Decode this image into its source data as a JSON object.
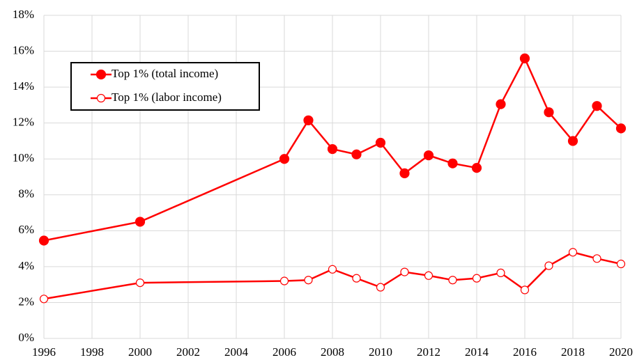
{
  "chart_data": {
    "type": "line",
    "x": [
      1996,
      2000,
      2006,
      2007,
      2008,
      2009,
      2010,
      2011,
      2012,
      2013,
      2014,
      2015,
      2016,
      2017,
      2018,
      2019,
      2020
    ],
    "series": [
      {
        "name": "Top 1% (total income)",
        "color": "#ff0000",
        "marker": "filled",
        "values": [
          5.45,
          6.5,
          10.0,
          12.15,
          10.55,
          10.25,
          10.9,
          9.2,
          10.2,
          9.75,
          9.5,
          13.05,
          15.6,
          12.6,
          11.0,
          12.95,
          11.7
        ]
      },
      {
        "name": "Top 1% (labor income)",
        "color": "#ff0000",
        "marker": "hollow",
        "values": [
          2.2,
          3.1,
          3.2,
          3.25,
          3.85,
          3.35,
          2.85,
          3.7,
          3.5,
          3.25,
          3.35,
          3.65,
          2.7,
          4.05,
          4.8,
          4.45,
          4.15
        ]
      }
    ],
    "xlim": [
      1996,
      2020
    ],
    "xticks": [
      1996,
      1998,
      2000,
      2002,
      2004,
      2006,
      2008,
      2010,
      2012,
      2014,
      2016,
      2018,
      2020
    ],
    "ylim": [
      0,
      18
    ],
    "yticks": [
      {
        "value": 0,
        "label": "0%"
      },
      {
        "value": 2,
        "label": "2%"
      },
      {
        "value": 4,
        "label": "4%"
      },
      {
        "value": 6,
        "label": "6%"
      },
      {
        "value": 8,
        "label": "8%"
      },
      {
        "value": 10,
        "label": "10%"
      },
      {
        "value": 12,
        "label": "12%"
      },
      {
        "value": 14,
        "label": "14%"
      },
      {
        "value": 16,
        "label": "16%"
      },
      {
        "value": 18,
        "label": "18%"
      }
    ],
    "grid": true,
    "legend": "upper-left"
  }
}
